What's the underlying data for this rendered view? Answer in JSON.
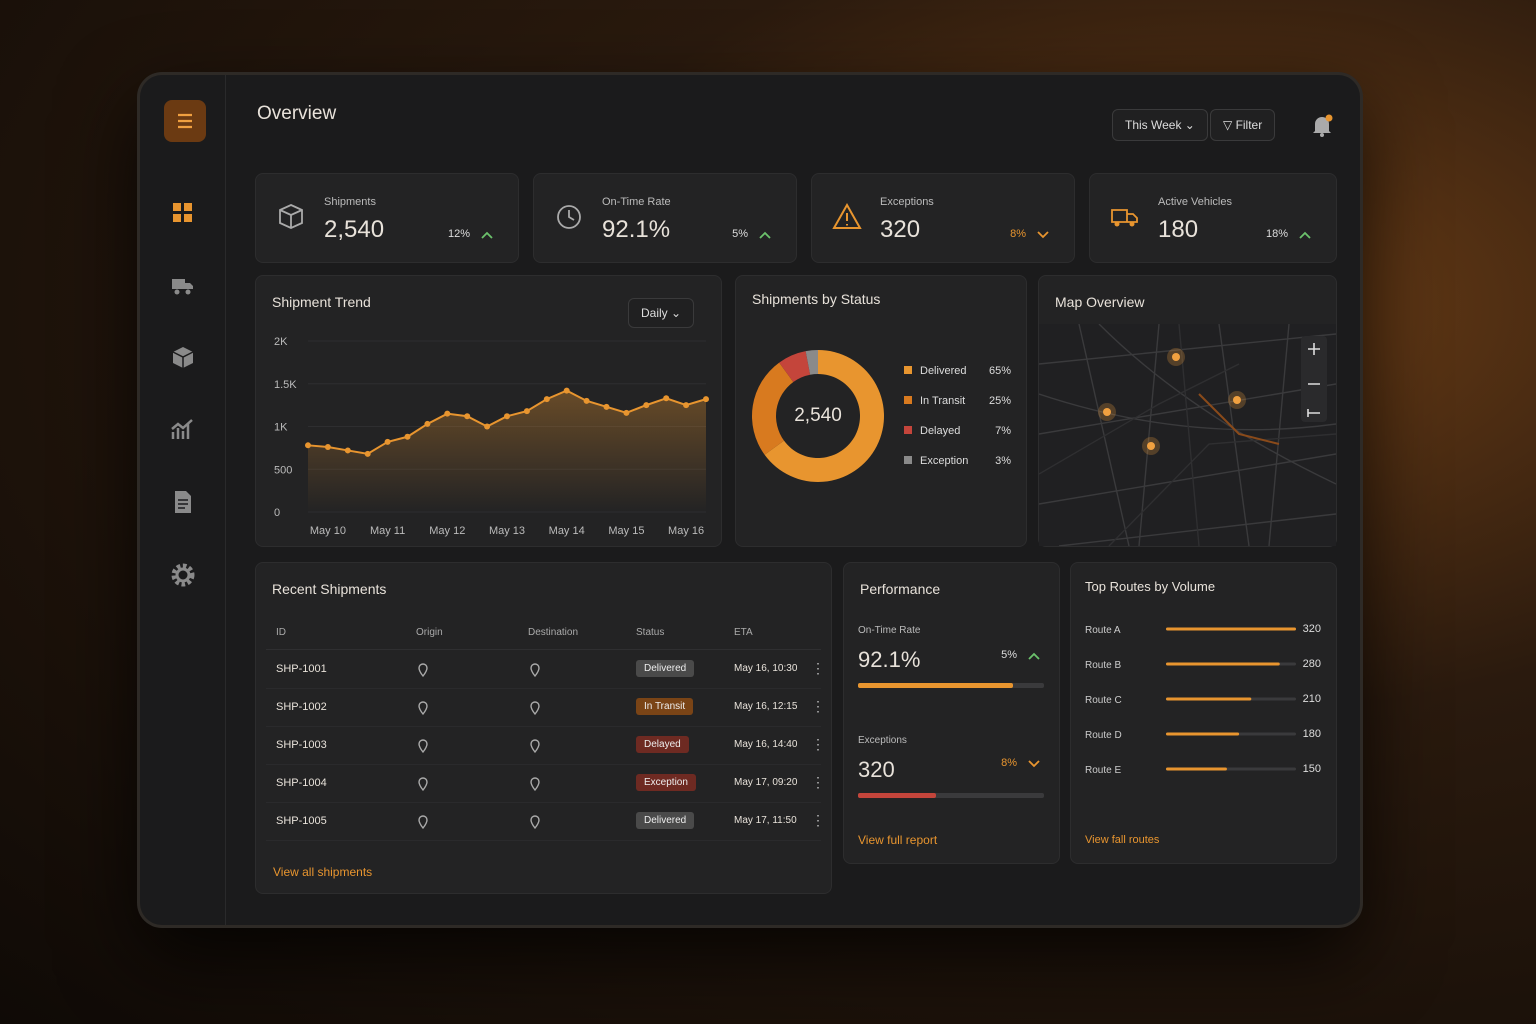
{
  "header": {
    "title": "Overview",
    "period": "This Week",
    "filter": "Filter"
  },
  "kpis": [
    {
      "label": "Shipments",
      "value": "2,540",
      "change": "12%",
      "trend": "up"
    },
    {
      "label": "On-Time Rate",
      "value": "92.1%",
      "change": "5%",
      "trend": "up"
    },
    {
      "label": "Exceptions",
      "value": "320",
      "change": "8%",
      "trend": "down"
    },
    {
      "label": "Active Vehicles",
      "value": "180",
      "change": "18%",
      "trend": "up"
    }
  ],
  "map": {
    "title": "Map Overview"
  },
  "recent_shipments": {
    "title": "Recent Shipments",
    "columns": [
      "ID",
      "Origin",
      "Destination",
      "Status",
      "ETA"
    ],
    "rows": [
      {
        "id": "SHP-1001",
        "status": "Delivered",
        "eta": "May 16, 10:30",
        "status_color": "#4a4a4a"
      },
      {
        "id": "SHP-1002",
        "status": "In Transit",
        "eta": "May 16, 12:15",
        "status_color": "#7a4416"
      },
      {
        "id": "SHP-1003",
        "status": "Delayed",
        "eta": "May 16, 14:40",
        "status_color": "#6e2a22"
      },
      {
        "id": "SHP-1004",
        "status": "Exception",
        "eta": "May 17, 09:20",
        "status_color": "#6e2a22"
      },
      {
        "id": "SHP-1005",
        "status": "Delivered",
        "eta": "May 17, 11:50",
        "status_color": "#4a4a4a"
      }
    ],
    "link": "View all shipments"
  },
  "performance": {
    "title": "Performance",
    "items": [
      {
        "label": "On-Time Rate",
        "value": "92.1%",
        "change": "5%",
        "trend": "up"
      },
      {
        "label": "Exceptions",
        "value": "320",
        "change": "8%",
        "trend": "down"
      }
    ],
    "link": "View full report"
  },
  "chart_data": [
    {
      "type": "line",
      "title": "Shipment Trend",
      "granularity": "Daily",
      "categories": [
        null,
        "May 10",
        null,
        null,
        "May 11",
        null,
        null,
        "May 12",
        null,
        null,
        "May 13",
        null,
        null,
        "May 14",
        null,
        null,
        "May 15",
        null,
        null,
        "May 16",
        null
      ],
      "values": [
        780,
        760,
        720,
        680,
        820,
        880,
        1030,
        1150,
        1120,
        1000,
        1120,
        1180,
        1320,
        1420,
        1300,
        1230,
        1160,
        1250,
        1330,
        1250,
        1320
      ],
      "color": "#e8952f",
      "ylim": [
        0,
        2000
      ],
      "yticks": [
        0,
        500,
        {
          "value": 1000,
          "label": "1K"
        },
        {
          "value": 1500,
          "label": "1.5K"
        },
        {
          "value": 2000,
          "label": "2K"
        }
      ],
      "grid": true
    },
    {
      "type": "pie",
      "title": "Shipments by Status",
      "center_label": "2,540",
      "categories": [
        "Delivered",
        "In Transit",
        "Delayed",
        "Exception"
      ],
      "values": [
        65,
        25,
        7,
        3
      ],
      "value_labels": [
        "65%",
        "25%",
        "7%",
        "3%"
      ],
      "colors": [
        "#e8952f",
        "#d87a1f",
        "#c4453b",
        "#8a8a8a"
      ]
    },
    {
      "type": "bar",
      "orientation": "horizontal",
      "title": "Top Routes by Volume",
      "categories": [
        "Route A",
        "Route B",
        "Route C",
        "Route D",
        "Route E"
      ],
      "values": [
        320,
        280,
        210,
        180,
        150
      ],
      "color": "#e8952f",
      "link": "View fall routes"
    }
  ]
}
